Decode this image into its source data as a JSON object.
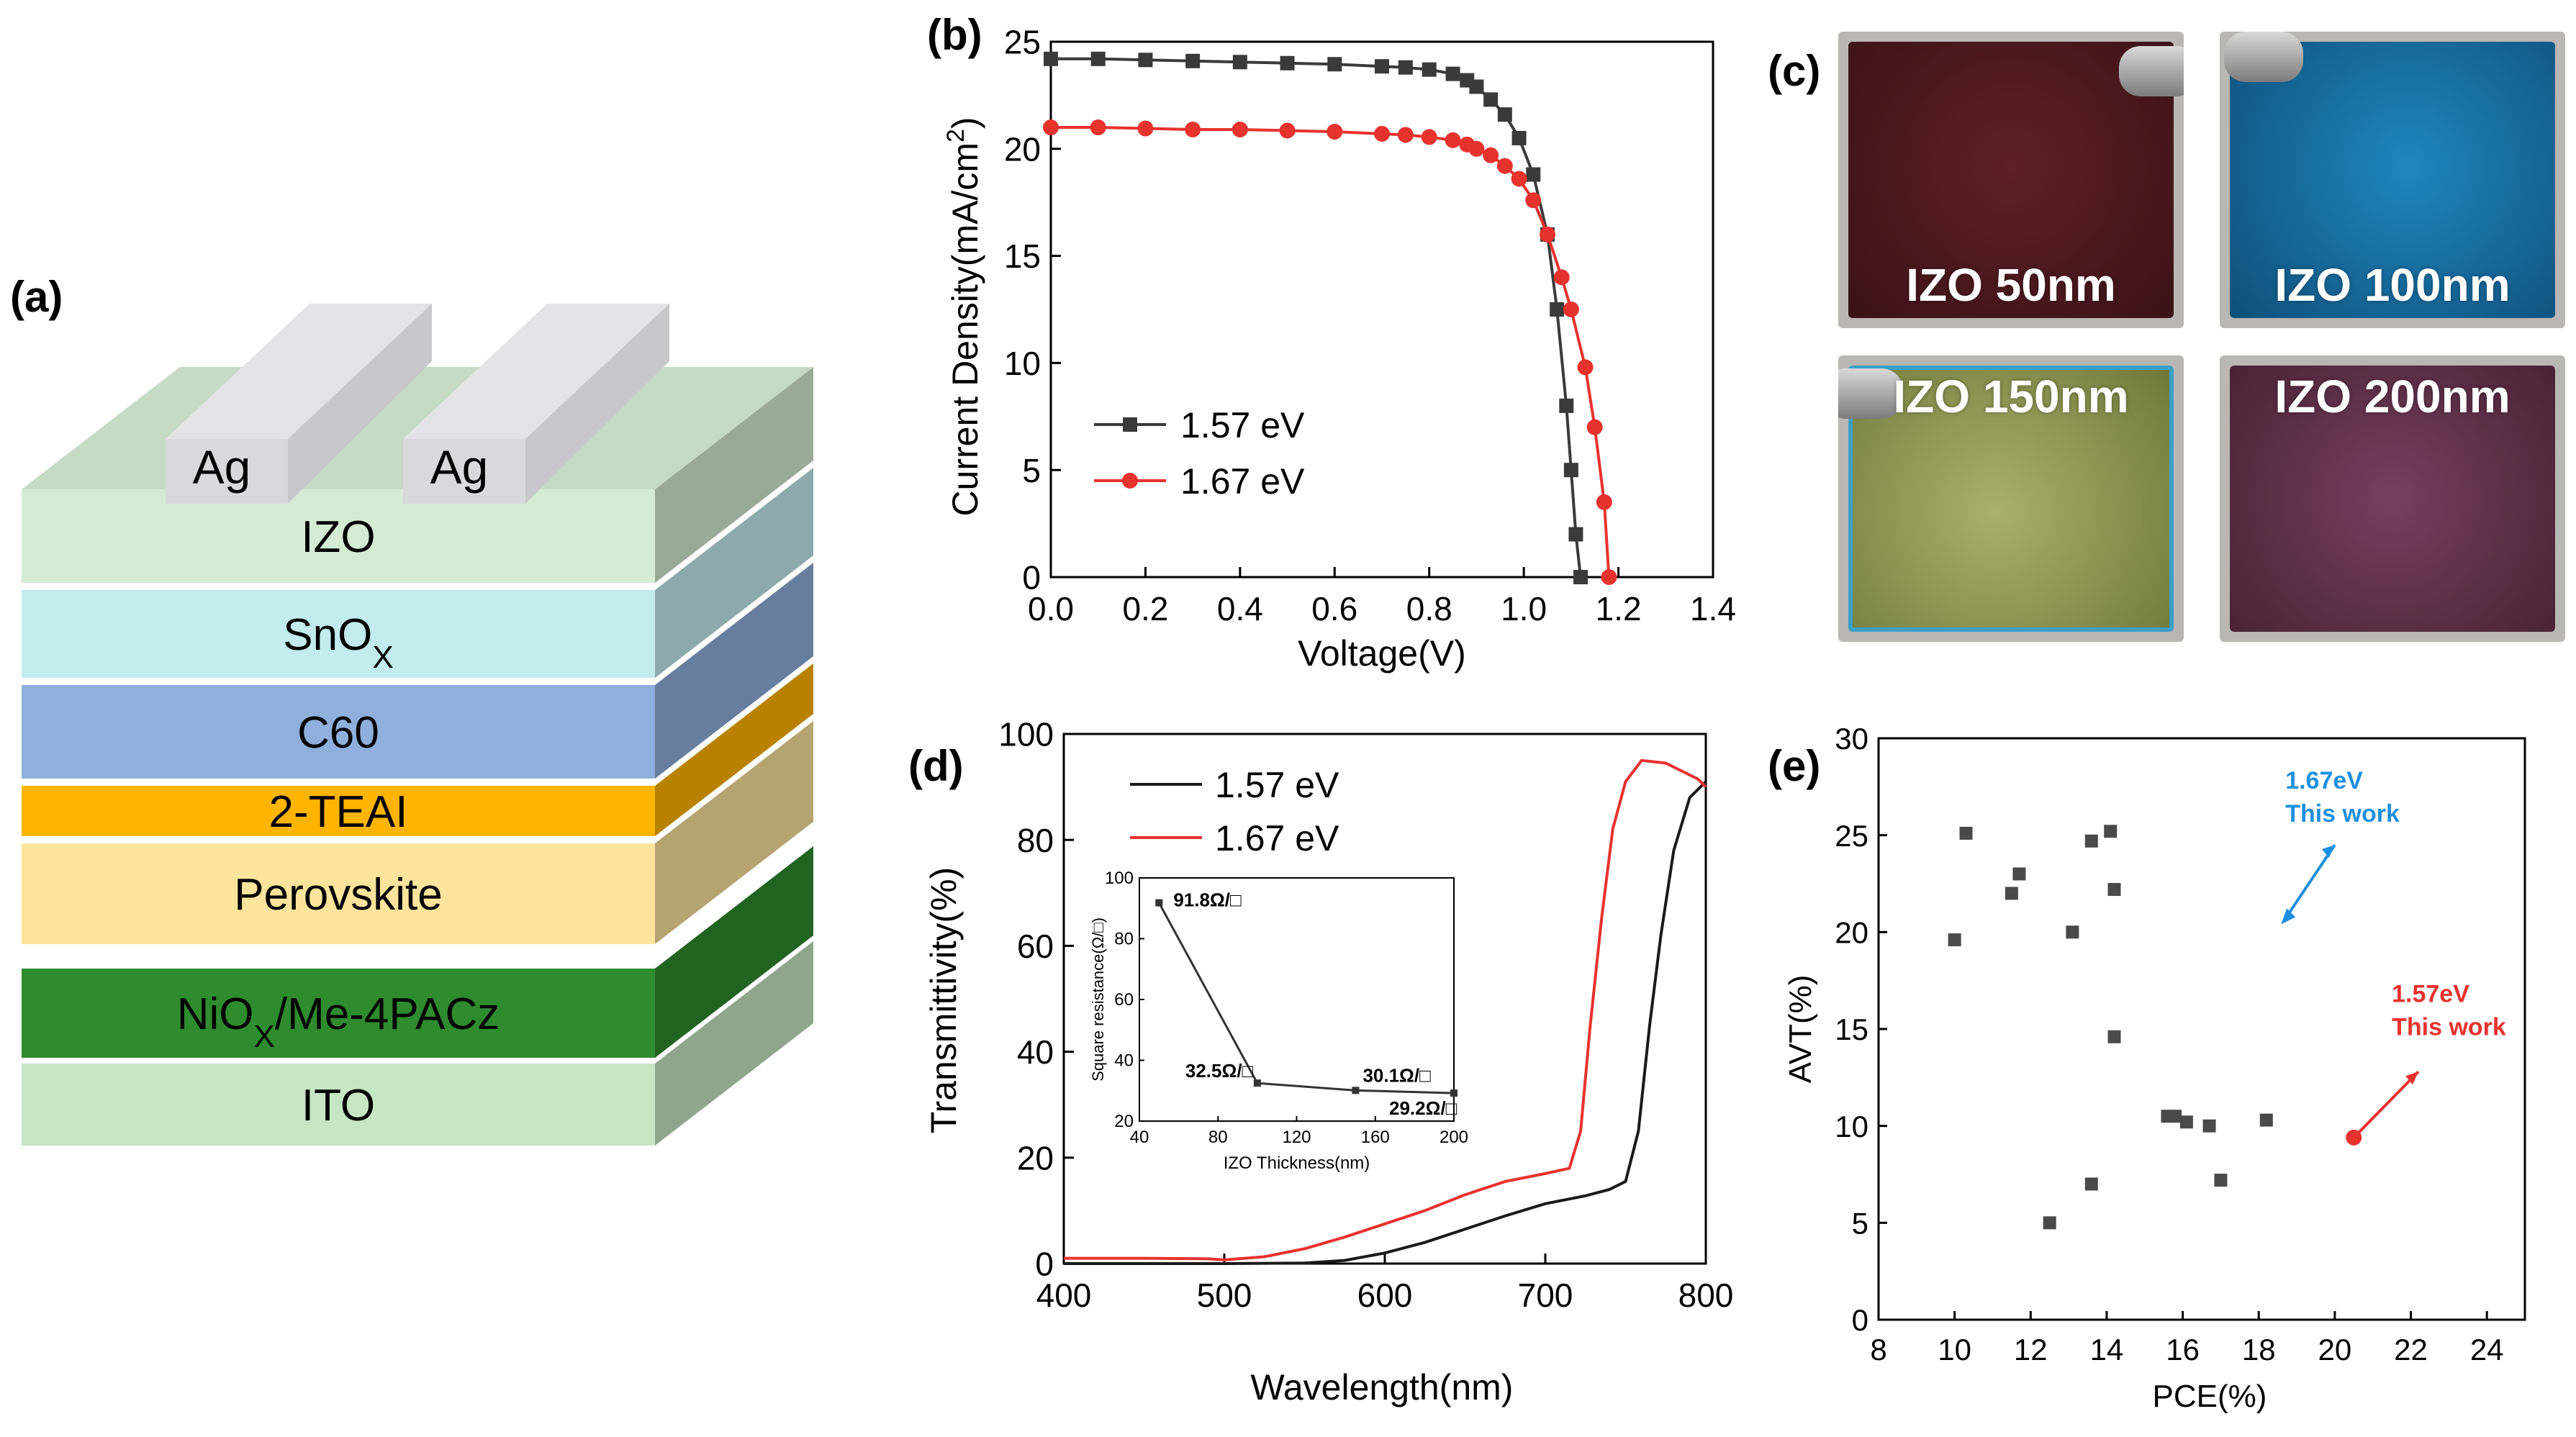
{
  "panel_labels": {
    "a": "(a)",
    "b": "(b)",
    "c": "(c)",
    "d": "(d)",
    "e": "(e)"
  },
  "device_stack": {
    "electrodes": [
      "Ag",
      "Ag"
    ],
    "layers": [
      {
        "label": "IZO",
        "sub": "",
        "color": "#d4ecd4"
      },
      {
        "label": "SnO",
        "sub": "X",
        "color": "#c2ecee"
      },
      {
        "label": "C60",
        "sub": "",
        "color": "#8fafdc"
      },
      {
        "label": "2-TEAI",
        "sub": "",
        "color": "#ffb400"
      },
      {
        "label": "Perovskite",
        "sub": "",
        "color": "#fde49c"
      },
      {
        "label": "NiO",
        "sub": "X",
        "label2": "/Me-4PACz",
        "color": "#2e8b2e"
      },
      {
        "label": "ITO",
        "sub": "",
        "color": "#c7e6c4"
      }
    ]
  },
  "photos": [
    {
      "label": "IZO 50nm",
      "color": "#5a1d24"
    },
    {
      "label": "IZO 100nm",
      "color": "#1472a8"
    },
    {
      "label": "IZO 150nm",
      "color": "#9aa45c"
    },
    {
      "label": "IZO 200nm",
      "color": "#6a3552"
    }
  ],
  "chart_data": [
    {
      "id": "b",
      "type": "line",
      "xlabel": "Voltage(V)",
      "ylabel": "Current Density(mA/cm",
      "ylabel_sup": "2",
      "ylabel_end": ")",
      "xlim": [
        0.0,
        1.4
      ],
      "ylim": [
        0,
        25
      ],
      "xticks": [
        "0.0",
        "0.2",
        "0.4",
        "0.6",
        "0.8",
        "1.0",
        "1.2",
        "1.4"
      ],
      "yticks": [
        "0",
        "5",
        "10",
        "15",
        "20",
        "25"
      ],
      "series": [
        {
          "name": "1.57 eV",
          "color": "#3a3a3a",
          "marker": "square",
          "x": [
            0.0,
            0.1,
            0.2,
            0.3,
            0.4,
            0.5,
            0.6,
            0.7,
            0.75,
            0.8,
            0.85,
            0.88,
            0.9,
            0.93,
            0.96,
            0.99,
            1.02,
            1.05,
            1.07,
            1.09,
            1.1,
            1.11,
            1.12
          ],
          "y": [
            24.2,
            24.2,
            24.15,
            24.1,
            24.05,
            24.0,
            23.95,
            23.85,
            23.8,
            23.7,
            23.5,
            23.2,
            22.9,
            22.3,
            21.6,
            20.5,
            18.8,
            16.0,
            12.5,
            8.0,
            5.0,
            2.0,
            0.0
          ]
        },
        {
          "name": "1.67 eV",
          "color": "#e8322e",
          "marker": "circle",
          "x": [
            0.0,
            0.1,
            0.2,
            0.3,
            0.4,
            0.5,
            0.6,
            0.7,
            0.75,
            0.8,
            0.85,
            0.88,
            0.9,
            0.93,
            0.96,
            0.99,
            1.02,
            1.05,
            1.08,
            1.1,
            1.13,
            1.15,
            1.17,
            1.18
          ],
          "y": [
            21.0,
            21.0,
            20.95,
            20.9,
            20.9,
            20.85,
            20.8,
            20.7,
            20.65,
            20.55,
            20.4,
            20.2,
            20.0,
            19.7,
            19.2,
            18.6,
            17.6,
            16.0,
            14.0,
            12.5,
            9.8,
            7.0,
            3.5,
            0.0
          ]
        }
      ]
    },
    {
      "id": "d",
      "type": "line",
      "xlabel": "Wavelength(nm)",
      "ylabel": "Transmittivity(%)",
      "xlim": [
        400,
        800
      ],
      "ylim": [
        0,
        100
      ],
      "xticks": [
        "400",
        "500",
        "600",
        "700",
        "800"
      ],
      "yticks": [
        "0",
        "20",
        "40",
        "60",
        "80",
        "100"
      ],
      "series": [
        {
          "name": "1.57 eV",
          "color": "#1a1a1a",
          "x": [
            400,
            450,
            500,
            550,
            575,
            600,
            625,
            650,
            675,
            700,
            725,
            740,
            750,
            758,
            765,
            772,
            780,
            790,
            800
          ],
          "y": [
            0.0,
            0.0,
            0.0,
            0.1,
            0.6,
            2.0,
            4.0,
            6.5,
            9.0,
            11.3,
            12.8,
            14.0,
            15.5,
            25.0,
            45.0,
            62.0,
            78.0,
            88.0,
            91.0
          ]
        },
        {
          "name": "1.67 eV",
          "color": "#e8322e",
          "x": [
            400,
            450,
            490,
            500,
            525,
            550,
            575,
            600,
            625,
            650,
            675,
            700,
            715,
            722,
            728,
            735,
            742,
            750,
            760,
            775,
            785,
            795,
            800
          ],
          "y": [
            1.0,
            1.0,
            0.9,
            0.7,
            1.3,
            2.8,
            5.0,
            7.5,
            10.0,
            13.0,
            15.5,
            17.0,
            18.0,
            25.0,
            45.0,
            65.0,
            82.0,
            91.0,
            95.0,
            94.5,
            93.0,
            91.5,
            90.0
          ]
        }
      ],
      "inset": {
        "xlabel": "IZO Thickness(nm)",
        "ylabel": "Square resistance(Ω/□)",
        "xlim": [
          40,
          200
        ],
        "ylim": [
          20,
          100
        ],
        "xticks": [
          "40",
          "80",
          "120",
          "160",
          "200"
        ],
        "yticks": [
          "20",
          "40",
          "60",
          "80",
          "100"
        ],
        "x": [
          50,
          100,
          150,
          200
        ],
        "y": [
          91.8,
          32.5,
          30.1,
          29.2
        ],
        "labels": [
          "91.8Ω/□",
          "32.5Ω/□",
          "30.1Ω/□",
          "29.2Ω/□"
        ]
      }
    },
    {
      "id": "e",
      "type": "scatter",
      "xlabel": "PCE(%)",
      "ylabel": "AVT(%)",
      "xlim": [
        8,
        25
      ],
      "ylim": [
        0,
        30
      ],
      "xticks": [
        "8",
        "10",
        "12",
        "14",
        "16",
        "18",
        "20",
        "22",
        "24"
      ],
      "yticks": [
        "0",
        "5",
        "10",
        "15",
        "20",
        "25",
        "30"
      ],
      "points": {
        "x": [
          10.0,
          10.3,
          11.5,
          11.7,
          12.5,
          13.1,
          13.6,
          13.6,
          14.1,
          14.2,
          14.2,
          15.6,
          15.8,
          16.1,
          16.7,
          17.0,
          18.2
        ],
        "y": [
          19.6,
          25.1,
          22.0,
          23.0,
          5.0,
          20.0,
          24.7,
          7.0,
          25.2,
          22.2,
          14.6,
          10.5,
          10.5,
          10.2,
          10.0,
          7.2,
          10.3
        ]
      },
      "annotations": [
        {
          "line1": "1.67eV",
          "line2": "This work",
          "x": 18.7,
          "y": 20.7,
          "color": "#1d8fe0"
        },
        {
          "line1": "1.57eV",
          "line2": "This work",
          "x": 20.5,
          "y": 9.4,
          "color": "#e8322e"
        }
      ]
    }
  ]
}
